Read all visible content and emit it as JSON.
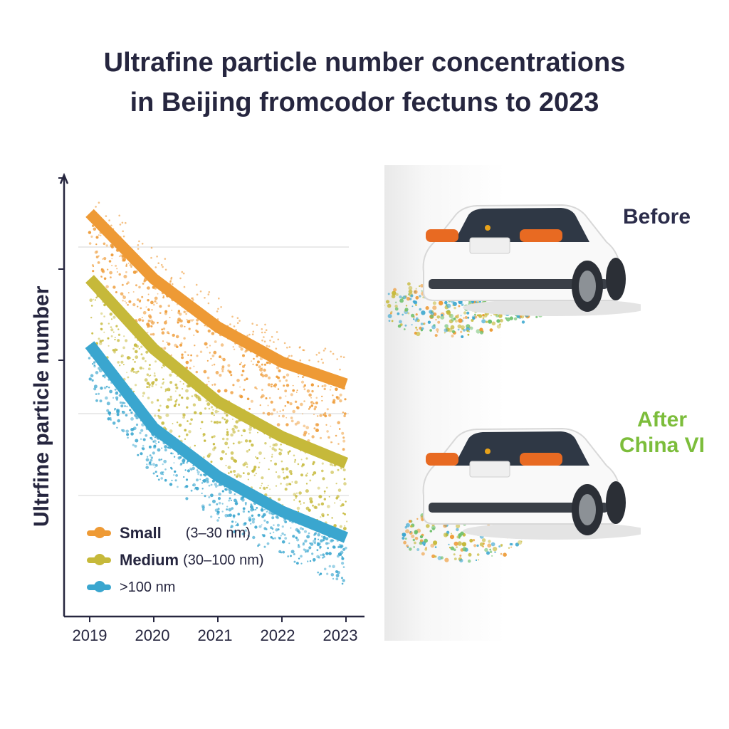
{
  "title": {
    "line1": "Ultrafine particle number concentrations",
    "line2": "in Beijing fromcodor fectuns to 2023"
  },
  "colors": {
    "small": "#ee9a35",
    "medium": "#c6b93a",
    "large": "#3aa6cf",
    "axis": "#26263f",
    "after_label": "#7cbd3b"
  },
  "chart_data": {
    "type": "area",
    "title": "Ultrafine particle number concentrations in Beijing fromcodor fectuns to 2023",
    "xlabel": "",
    "ylabel": "Ultrfine particle number",
    "categories": [
      "2019",
      "2020",
      "2021",
      "2022",
      "2023"
    ],
    "ylim": [
      0,
      100
    ],
    "grid": true,
    "legend_position": "bottom-left",
    "series": [
      {
        "name": "Small",
        "range": "(3–30 nm)",
        "values": [
          92,
          77,
          66,
          58,
          53
        ]
      },
      {
        "name": "Medium",
        "range": "(30–100 nm)",
        "values": [
          77,
          61,
          49,
          41,
          35
        ]
      },
      {
        "name": ">100 nm",
        "range": "",
        "values": [
          62,
          43,
          32,
          24,
          18
        ]
      }
    ]
  },
  "legend": {
    "small": {
      "name": "Small",
      "range": "(3–30 nm)"
    },
    "medium": {
      "name": "Medium",
      "range": "(30–100 nm)"
    },
    "large": {
      "name": ">100 nm"
    }
  },
  "cars": {
    "before_label": "Before",
    "after_label_line1": "After",
    "after_label_line2": "China VI"
  }
}
